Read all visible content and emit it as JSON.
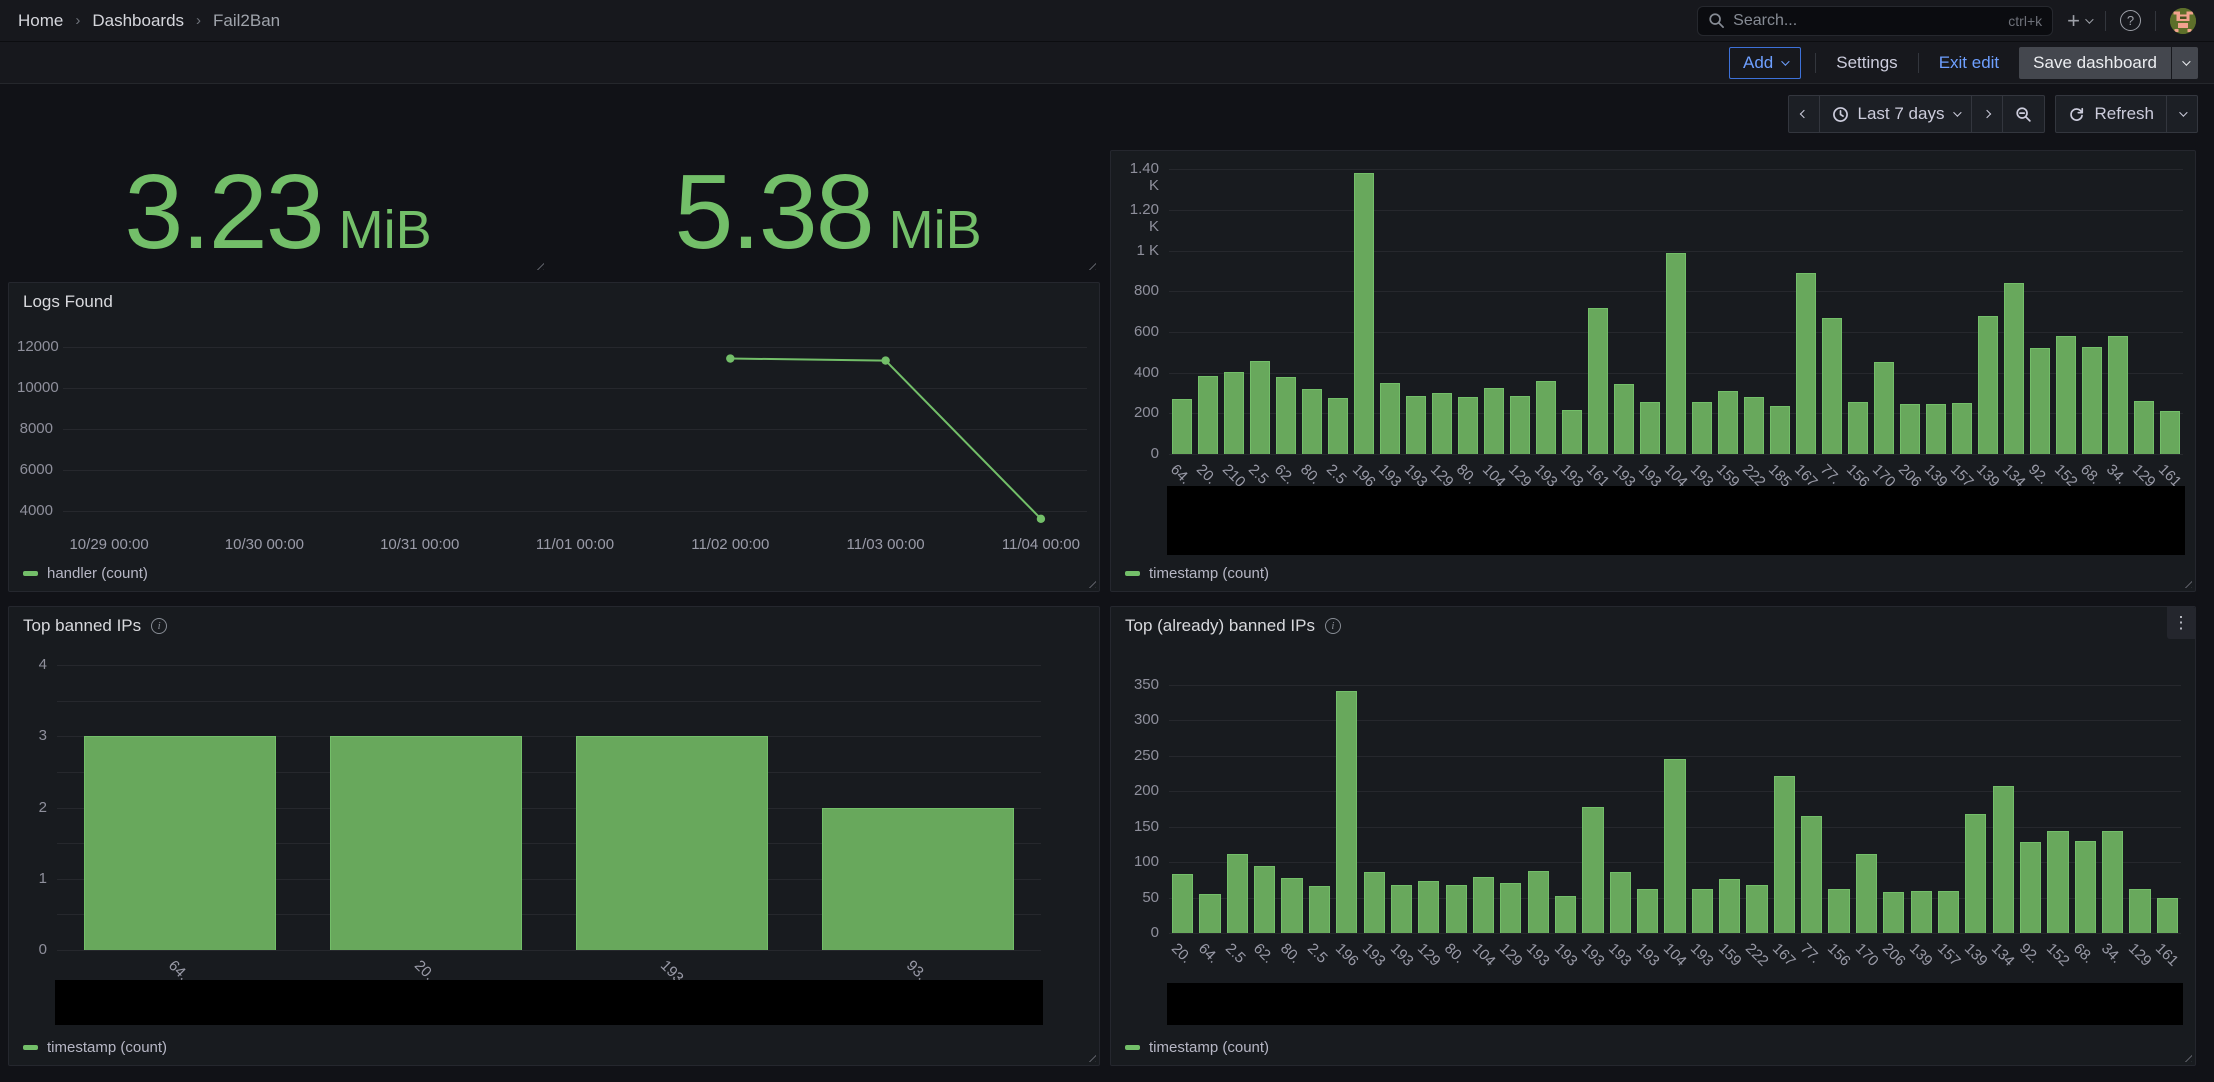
{
  "nav": {
    "breadcrumb": [
      {
        "label": "Home"
      },
      {
        "label": "Dashboards"
      },
      {
        "label": "Fail2Ban"
      }
    ],
    "search": {
      "placeholder": "Search...",
      "shortcut": "ctrl+k"
    }
  },
  "toolbar": {
    "add": "Add",
    "settings": "Settings",
    "exit_edit": "Exit edit",
    "save": "Save dashboard"
  },
  "time_controls": {
    "range": "Last 7 days",
    "refresh": "Refresh"
  },
  "colors": {
    "green": "#73BF69",
    "bar_fill": "#68a85c",
    "blue_text": "#6e9fff",
    "blue_border": "#3d71d9"
  },
  "panels": {
    "stat_1": {
      "value": "3.23",
      "unit": "MiB"
    },
    "stat_2": {
      "value": "5.38",
      "unit": "MiB"
    },
    "logs_found": {
      "title": "Logs Found",
      "legend": "handler (count)"
    },
    "bans_per_ip": {
      "legend": "timestamp (count)"
    },
    "top_banned": {
      "title": "Top banned IPs",
      "legend": "timestamp (count)"
    },
    "top_already_banned": {
      "title": "Top (already) banned IPs",
      "legend": "timestamp (count)"
    }
  },
  "chart_data": [
    {
      "id": "logs-found",
      "type": "line",
      "title": "Logs Found",
      "x_ticks": [
        "10/29 00:00",
        "10/30 00:00",
        "10/31 00:00",
        "11/01 00:00",
        "11/02 00:00",
        "11/03 00:00",
        "11/04 00:00"
      ],
      "y_ticks": [
        4000,
        6000,
        8000,
        10000,
        12000
      ],
      "ylim": [
        3200,
        12700
      ],
      "grid": true,
      "legend_position": "bottom-left",
      "series": [
        {
          "name": "handler (count)",
          "color": "#73BF69",
          "points": [
            {
              "x": "11/02 00:00",
              "y": 11450
            },
            {
              "x": "11/03 00:00",
              "y": 11350
            },
            {
              "x": "11/04 00:00",
              "y": 3600
            }
          ]
        }
      ]
    },
    {
      "id": "bans-per-ip",
      "type": "bar",
      "title": "",
      "categories": [
        "64.",
        "20.",
        "210",
        "2.5",
        "62.",
        "80.",
        "2.5",
        "196",
        "193",
        "193",
        "129",
        "80.",
        "104",
        "129",
        "193",
        "193",
        "161",
        "193",
        "193",
        "104",
        "193",
        "159",
        "222",
        "185",
        "167",
        "77.",
        "156",
        "170",
        "206",
        "139",
        "157",
        "139",
        "134",
        "92.",
        "152",
        "68.",
        "34.",
        "129",
        "161"
      ],
      "values": [
        270,
        385,
        405,
        455,
        380,
        320,
        275,
        1380,
        350,
        285,
        300,
        280,
        325,
        285,
        360,
        215,
        720,
        345,
        255,
        990,
        255,
        310,
        280,
        235,
        890,
        670,
        255,
        450,
        245,
        245,
        250,
        680,
        840,
        520,
        580,
        525,
        580,
        260,
        210
      ],
      "y_ticks": [
        0,
        200,
        400,
        600,
        800,
        1000,
        1200,
        1400
      ],
      "y_tick_labels": [
        "0",
        "200",
        "400",
        "600",
        "800",
        "1 K",
        "1.20 K",
        "1.40 K"
      ],
      "ylim": [
        0,
        1440
      ],
      "series_name": "timestamp (count)",
      "xaxis_redacted": true,
      "grid": true,
      "legend_position": "bottom-left"
    },
    {
      "id": "top-banned",
      "type": "bar",
      "title": "Top banned IPs",
      "categories": [
        "64.",
        "20.",
        "193",
        "93."
      ],
      "values": [
        3,
        3,
        3,
        2
      ],
      "y_ticks": [
        0,
        1,
        2,
        3,
        4
      ],
      "y_minor": [
        0.5,
        1.5,
        2.5,
        3.5
      ],
      "ylim": [
        0,
        4.2
      ],
      "series_name": "timestamp (count)",
      "xaxis_redacted": true,
      "grid": true,
      "legend_position": "bottom-left"
    },
    {
      "id": "top-already-banned",
      "type": "bar",
      "title": "Top (already) banned IPs",
      "categories": [
        "20.",
        "64.",
        "2.5",
        "62.",
        "80.",
        "2.5",
        "196",
        "193",
        "193",
        "129",
        "80.",
        "104",
        "129",
        "193",
        "193",
        "193",
        "193",
        "193",
        "104",
        "193",
        "159",
        "222",
        "167",
        "77.",
        "156",
        "170",
        "206",
        "139",
        "157",
        "139",
        "134",
        "92.",
        "152",
        "68.",
        "34.",
        "129",
        "161"
      ],
      "values": [
        83,
        55,
        112,
        94,
        78,
        67,
        341,
        86,
        68,
        73,
        68,
        79,
        70,
        88,
        52,
        178,
        86,
        62,
        246,
        62,
        76,
        68,
        222,
        165,
        62,
        111,
        58,
        59,
        59,
        168,
        207,
        128,
        144,
        130,
        144,
        62,
        50
      ],
      "y_ticks": [
        0,
        50,
        100,
        150,
        200,
        250,
        300,
        350
      ],
      "ylim": [
        0,
        398
      ],
      "series_name": "timestamp (count)",
      "xaxis_redacted": true,
      "grid": true,
      "legend_position": "bottom-left"
    }
  ]
}
